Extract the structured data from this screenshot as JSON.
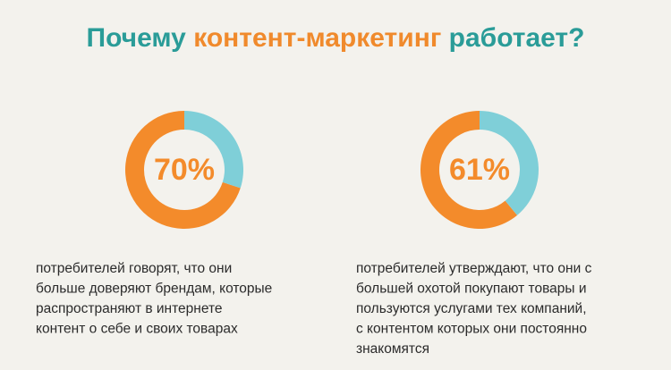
{
  "title": {
    "parts": [
      {
        "text": "Почему ",
        "color": "#2a9c98"
      },
      {
        "text": "контент-маркетинг",
        "color": "#f08a2c"
      },
      {
        "text": " работает?",
        "color": "#2a9c98"
      }
    ]
  },
  "chart_data": [
    {
      "type": "donut",
      "values": [
        70,
        30
      ],
      "colors": [
        "#f38b2b",
        "#7fcfd8"
      ],
      "value_labels": [
        "70%",
        null
      ],
      "caption": [
        "потребителей говорят, что они",
        "больше доверяют брендам, которые",
        "распространяют в интернете",
        "контент о себе и своих товарах"
      ]
    },
    {
      "type": "donut",
      "values": [
        61,
        39
      ],
      "colors": [
        "#f38b2b",
        "#7fcfd8"
      ],
      "value_labels": [
        "61%",
        null
      ],
      "caption": [
        "потребителей утверждают, что они с",
        "большей охотой покупают товары и",
        "пользуются услугами тех компаний,",
        "с контентом которых они постоянно",
        "знакомятся"
      ]
    }
  ]
}
